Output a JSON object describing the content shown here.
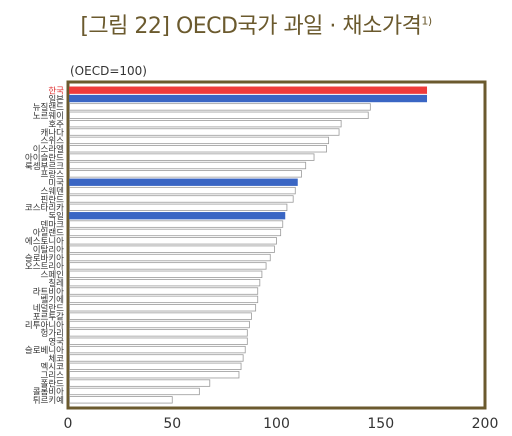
{
  "title": "[그림 22] OECD국가 과일 · 채소가격",
  "title_note": "1)",
  "chart_data": {
    "type": "bar",
    "orientation": "horizontal",
    "unit_label": "(OECD=100)",
    "xlim": [
      0,
      200
    ],
    "xticks": [
      "0",
      "50",
      "100",
      "150",
      "200"
    ],
    "grid": false,
    "categories": [
      "한국",
      "일본",
      "뉴질랜드",
      "노르웨이",
      "호주",
      "캐나다",
      "스위스",
      "이스라엘",
      "아이슬란드",
      "룩셈부르크",
      "프랑스",
      "미국",
      "스웨덴",
      "핀란드",
      "코스타리카",
      "독일",
      "덴마크",
      "아일랜드",
      "에스토니아",
      "이탈리아",
      "슬로바키아",
      "오스트리아",
      "스페인",
      "칠레",
      "라트비아",
      "벨기에",
      "네덜란드",
      "포르투갈",
      "리투아니아",
      "헝가리",
      "영국",
      "슬로베니아",
      "체코",
      "멕시코",
      "그리스",
      "폴란드",
      "콜롬비아",
      "튀르키예"
    ],
    "values": [
      172,
      172,
      145,
      144,
      131,
      130,
      125,
      124,
      118,
      114,
      112,
      110,
      109,
      108,
      105,
      104,
      103,
      102,
      100,
      99,
      97,
      95,
      93,
      92,
      91,
      91,
      90,
      88,
      87,
      86,
      86,
      85,
      84,
      83,
      82,
      68,
      63,
      50
    ],
    "highlight_color": "#ef3b3b",
    "emphasis_color": "#3a66c4",
    "default_color": "#ffffff",
    "frame_color": "#6b5a2e",
    "bar_styles": {
      "한국": "highlight",
      "일본": "emphasis",
      "미국": "emphasis",
      "독일": "emphasis"
    }
  }
}
